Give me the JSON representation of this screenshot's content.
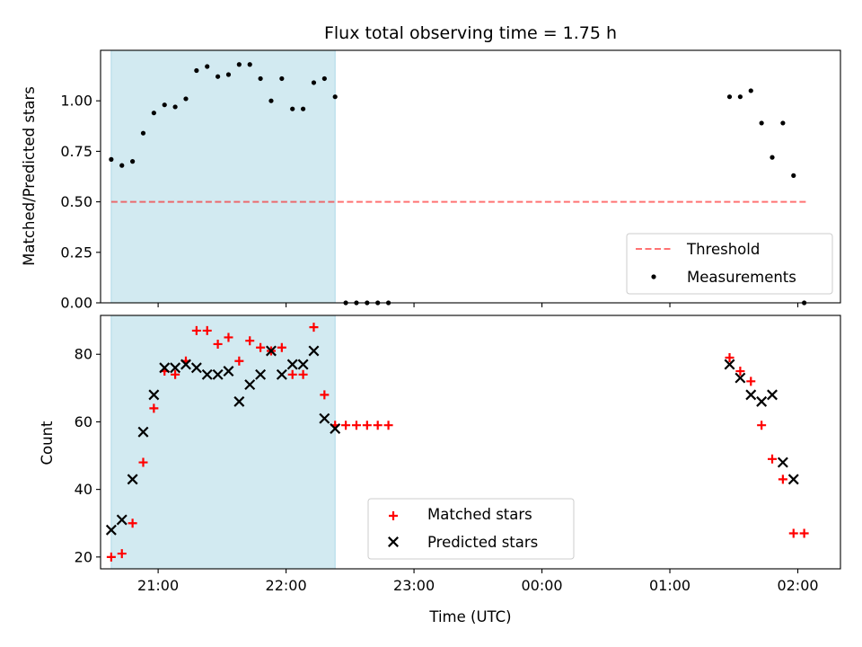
{
  "chart_data": [
    {
      "type": "scatter",
      "title": "Flux total observing time = 1.75 h",
      "ylabel": "Matched/Predicted stars",
      "xlabel": "",
      "ylim": [
        0,
        1.25
      ],
      "yticks": [
        0.0,
        0.25,
        0.5,
        0.75,
        1.0
      ],
      "ytick_labels": [
        "0.00",
        "0.25",
        "0.50",
        "0.75",
        "1.00"
      ],
      "xlim": [
        "20:33",
        "02:20"
      ],
      "xticks": [
        "21:00",
        "22:00",
        "23:00",
        "00:00",
        "01:00",
        "02:00"
      ],
      "xtick_labels_shown": false,
      "shaded_interval": [
        "20:38",
        "22:23"
      ],
      "shade_color": "#add8e6",
      "threshold": {
        "name": "Threshold",
        "value": 0.5,
        "x_range": [
          "20:38",
          "02:05"
        ],
        "color": "#ff0000",
        "style": "dashed"
      },
      "series": [
        {
          "name": "Measurements",
          "marker": "dot",
          "color": "#000000",
          "points": [
            [
              "20:38",
              0.71
            ],
            [
              "20:43",
              0.68
            ],
            [
              "20:48",
              0.7
            ],
            [
              "20:53",
              0.84
            ],
            [
              "20:58",
              0.94
            ],
            [
              "21:03",
              0.98
            ],
            [
              "21:08",
              0.97
            ],
            [
              "21:13",
              1.01
            ],
            [
              "21:18",
              1.15
            ],
            [
              "21:23",
              1.17
            ],
            [
              "21:28",
              1.12
            ],
            [
              "21:33",
              1.13
            ],
            [
              "21:38",
              1.18
            ],
            [
              "21:43",
              1.18
            ],
            [
              "21:48",
              1.11
            ],
            [
              "21:53",
              1.0
            ],
            [
              "21:58",
              1.11
            ],
            [
              "22:03",
              0.96
            ],
            [
              "22:08",
              0.96
            ],
            [
              "22:13",
              1.09
            ],
            [
              "22:18",
              1.11
            ],
            [
              "22:23",
              1.02
            ],
            [
              "22:28",
              0.0
            ],
            [
              "22:33",
              0.0
            ],
            [
              "22:38",
              0.0
            ],
            [
              "22:43",
              0.0
            ],
            [
              "22:48",
              0.0
            ],
            [
              "01:28",
              1.02
            ],
            [
              "01:33",
              1.02
            ],
            [
              "01:38",
              1.05
            ],
            [
              "01:43",
              0.89
            ],
            [
              "01:48",
              0.72
            ],
            [
              "01:53",
              0.89
            ],
            [
              "01:58",
              0.63
            ],
            [
              "02:03",
              0.0
            ]
          ]
        }
      ],
      "legend": {
        "placement": "lower-right",
        "entries": [
          "Threshold",
          "Measurements"
        ]
      }
    },
    {
      "type": "scatter",
      "title": "",
      "ylabel": "Count",
      "xlabel": "Time (UTC)",
      "ylim": [
        16.5,
        91.5
      ],
      "yticks": [
        20,
        40,
        60,
        80
      ],
      "ytick_labels": [
        "20",
        "40",
        "60",
        "80"
      ],
      "xlim": [
        "20:33",
        "02:20"
      ],
      "xticks": [
        "21:00",
        "22:00",
        "23:00",
        "00:00",
        "01:00",
        "02:00"
      ],
      "xtick_labels": [
        "21:00",
        "22:00",
        "23:00",
        "00:00",
        "01:00",
        "02:00"
      ],
      "shaded_interval": [
        "20:38",
        "22:23"
      ],
      "shade_color": "#add8e6",
      "series": [
        {
          "name": "Matched stars",
          "marker": "plus",
          "color": "#ff0000",
          "points": [
            [
              "20:38",
              20
            ],
            [
              "20:43",
              21
            ],
            [
              "20:48",
              30
            ],
            [
              "20:53",
              48
            ],
            [
              "20:58",
              64
            ],
            [
              "21:03",
              75
            ],
            [
              "21:08",
              74
            ],
            [
              "21:13",
              78
            ],
            [
              "21:18",
              87
            ],
            [
              "21:23",
              87
            ],
            [
              "21:28",
              83
            ],
            [
              "21:33",
              85
            ],
            [
              "21:38",
              78
            ],
            [
              "21:43",
              84
            ],
            [
              "21:48",
              82
            ],
            [
              "21:53",
              81
            ],
            [
              "21:58",
              82
            ],
            [
              "22:03",
              74
            ],
            [
              "22:08",
              74
            ],
            [
              "22:13",
              88
            ],
            [
              "22:18",
              68
            ],
            [
              "22:23",
              59
            ],
            [
              "22:28",
              59
            ],
            [
              "22:33",
              59
            ],
            [
              "22:38",
              59
            ],
            [
              "22:43",
              59
            ],
            [
              "22:48",
              59
            ],
            [
              "01:28",
              79
            ],
            [
              "01:33",
              75
            ],
            [
              "01:38",
              72
            ],
            [
              "01:43",
              59
            ],
            [
              "01:48",
              49
            ],
            [
              "01:53",
              43
            ],
            [
              "01:58",
              27
            ],
            [
              "02:03",
              27
            ]
          ]
        },
        {
          "name": "Predicted stars",
          "marker": "x",
          "color": "#000000",
          "points": [
            [
              "20:38",
              28
            ],
            [
              "20:43",
              31
            ],
            [
              "20:48",
              43
            ],
            [
              "20:53",
              57
            ],
            [
              "20:58",
              68
            ],
            [
              "21:03",
              76
            ],
            [
              "21:08",
              76
            ],
            [
              "21:13",
              77
            ],
            [
              "21:18",
              76
            ],
            [
              "21:23",
              74
            ],
            [
              "21:28",
              74
            ],
            [
              "21:33",
              75
            ],
            [
              "21:38",
              66
            ],
            [
              "21:43",
              71
            ],
            [
              "21:48",
              74
            ],
            [
              "21:53",
              81
            ],
            [
              "21:58",
              74
            ],
            [
              "22:03",
              77
            ],
            [
              "22:08",
              77
            ],
            [
              "22:13",
              81
            ],
            [
              "22:18",
              61
            ],
            [
              "22:23",
              58
            ],
            [
              "01:28",
              77
            ],
            [
              "01:33",
              73
            ],
            [
              "01:38",
              68
            ],
            [
              "01:43",
              66
            ],
            [
              "01:48",
              68
            ],
            [
              "01:53",
              48
            ],
            [
              "01:58",
              43
            ]
          ]
        }
      ],
      "legend": {
        "placement": "lower-center",
        "entries": [
          "Matched stars",
          "Predicted stars"
        ]
      }
    }
  ]
}
